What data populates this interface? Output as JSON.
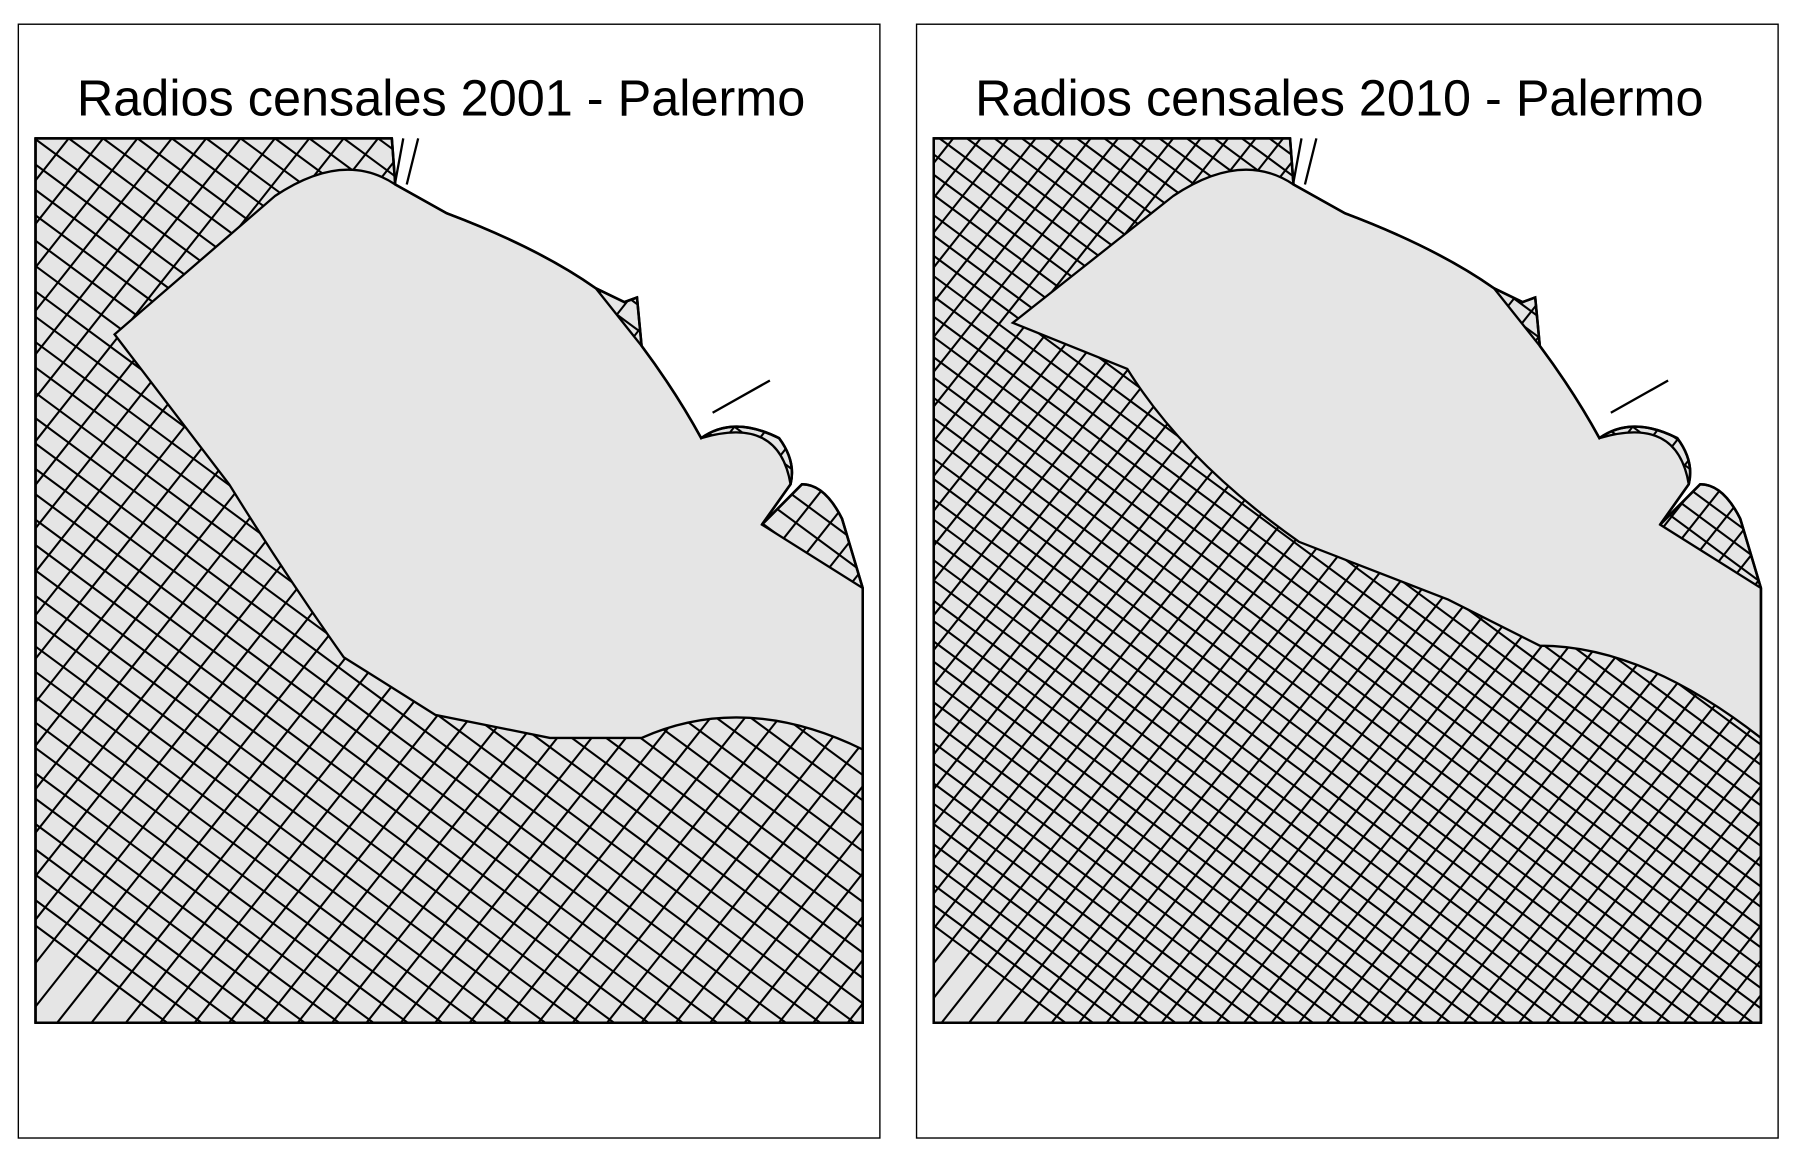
{
  "figure": {
    "panels": [
      {
        "title": "Radios censales 2001 - Palermo",
        "year": "2001",
        "land_fill": "#e5e5e5",
        "line_color": "#000000"
      },
      {
        "title": "Radios censales 2010 - Palermo",
        "year": "2010",
        "land_fill": "#e5e5e5",
        "line_color": "#000000"
      }
    ]
  }
}
